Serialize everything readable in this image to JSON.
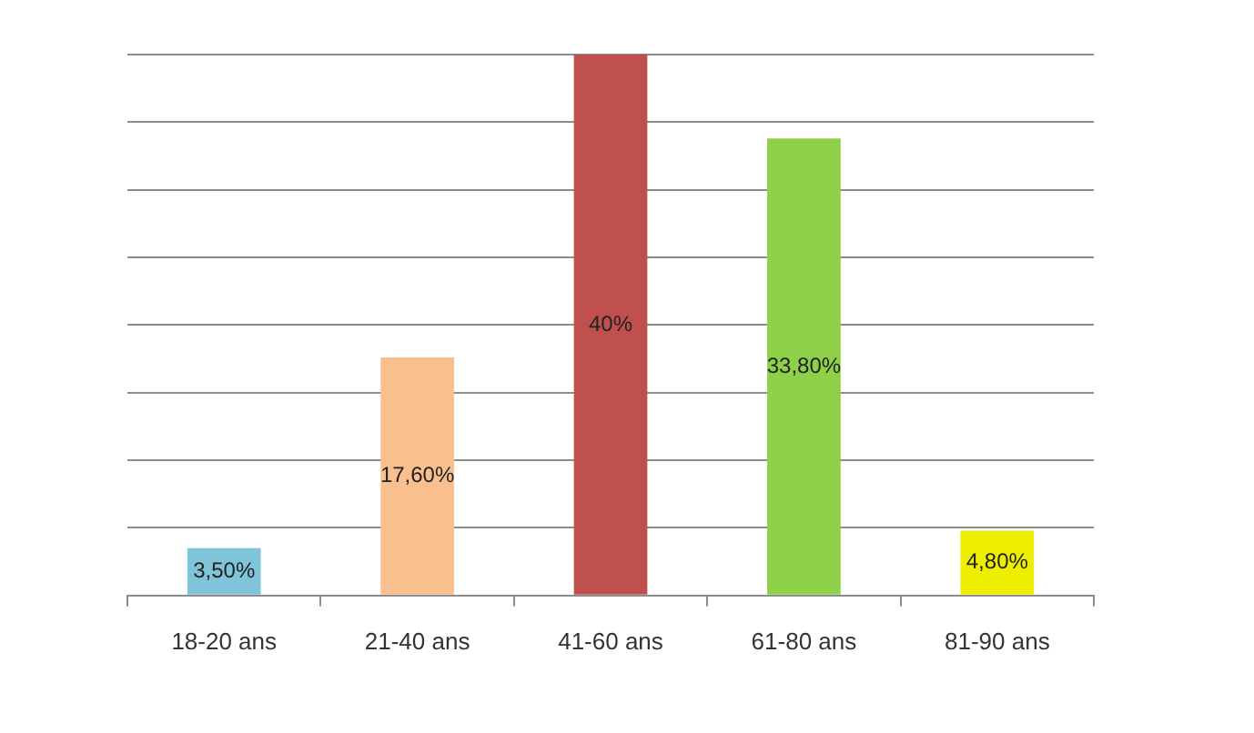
{
  "chart_data": {
    "type": "bar",
    "categories": [
      "18-20 ans",
      "21-40 ans",
      "41-60 ans",
      "61-80 ans",
      "81-90 ans"
    ],
    "values": [
      3.5,
      17.6,
      40,
      33.8,
      4.8
    ],
    "colors": [
      "#7fc4d8",
      "#f9bf8f",
      "#c0504d",
      "#8ed048",
      "#eeee00"
    ],
    "value_labels": [
      "3,50%",
      "17,60%",
      "40%",
      "33,80%",
      "4,80%"
    ],
    "ylim": [
      0,
      40
    ],
    "yticks": [
      0,
      5,
      10,
      15,
      20,
      25,
      30,
      35,
      40
    ],
    "grid": "y",
    "tick_labels": "x"
  }
}
